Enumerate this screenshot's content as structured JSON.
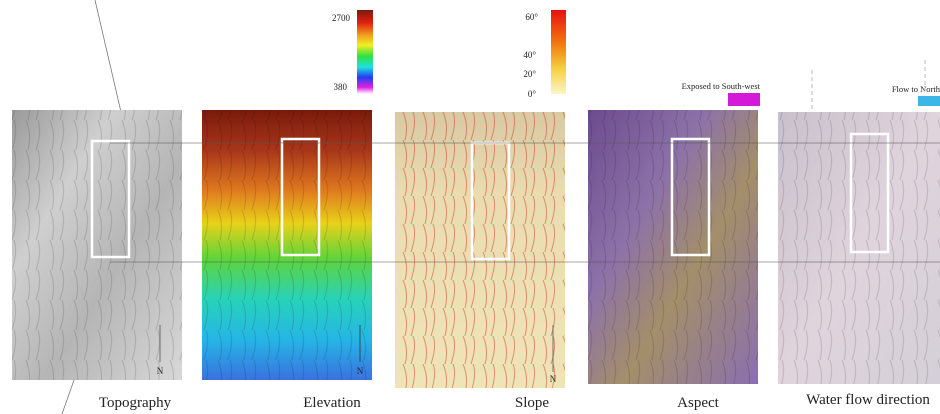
{
  "panels": [
    {
      "label": "Topography"
    },
    {
      "label": "Elevation"
    },
    {
      "label": "Slope"
    },
    {
      "label": "Aspect"
    },
    {
      "label": "Water flow direction"
    }
  ],
  "north_label": "N",
  "elevation_scale": {
    "top": "2700",
    "bottom": "380"
  },
  "slope_scale": {
    "ticks": [
      "60°",
      "40°",
      "20°",
      "0°"
    ]
  },
  "aspect_legend": "Exposed to South-west",
  "flow_legend": "Flow to North"
}
